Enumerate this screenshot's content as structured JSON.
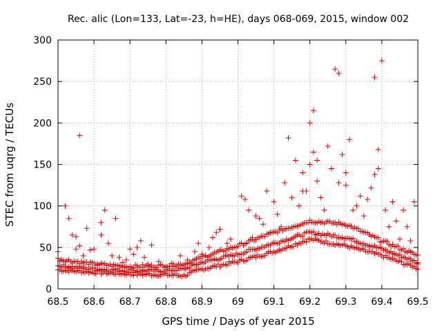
{
  "chart_data": {
    "type": "scatter",
    "title": "Rec. alic (Lon=133, Lat=-23, h=HE), days 068-069, 2015, window 002",
    "xlabel": "GPS time / Days of year 2015",
    "ylabel": "STEC from uqrg / TECUs",
    "xlim": [
      68.5,
      69.5
    ],
    "ylim": [
      0,
      300
    ],
    "xticks": [
      "68.5",
      "68.6",
      "68.7",
      "68.8",
      "68.9",
      "69",
      "69.1",
      "69.2",
      "69.3",
      "69.4",
      "69.5"
    ],
    "yticks": [
      "0",
      "50",
      "100",
      "150",
      "200",
      "250",
      "300"
    ],
    "grid": true,
    "marker": "plus",
    "color": "#dd0000",
    "points": [
      [
        68.5,
        45
      ],
      [
        68.51,
        35
      ],
      [
        68.52,
        100
      ],
      [
        68.53,
        27
      ],
      [
        68.53,
        85
      ],
      [
        68.54,
        65
      ],
      [
        68.55,
        63
      ],
      [
        68.55,
        48
      ],
      [
        68.56,
        185
      ],
      [
        68.56,
        52
      ],
      [
        68.57,
        40
      ],
      [
        68.58,
        73
      ],
      [
        68.59,
        47
      ],
      [
        68.6,
        48
      ],
      [
        68.61,
        30
      ],
      [
        68.62,
        65
      ],
      [
        68.62,
        80
      ],
      [
        68.63,
        95
      ],
      [
        68.64,
        55
      ],
      [
        68.65,
        40
      ],
      [
        68.66,
        85
      ],
      [
        68.67,
        38
      ],
      [
        68.68,
        32
      ],
      [
        68.69,
        35
      ],
      [
        68.7,
        48
      ],
      [
        68.71,
        42
      ],
      [
        68.72,
        50
      ],
      [
        68.73,
        58
      ],
      [
        68.74,
        38
      ],
      [
        68.75,
        30
      ],
      [
        68.76,
        53
      ],
      [
        68.78,
        33
      ],
      [
        68.8,
        27
      ],
      [
        68.82,
        30
      ],
      [
        68.84,
        40
      ],
      [
        68.86,
        35
      ],
      [
        68.88,
        45
      ],
      [
        68.89,
        55
      ],
      [
        68.9,
        42
      ],
      [
        68.92,
        50
      ],
      [
        68.93,
        62
      ],
      [
        68.94,
        68
      ],
      [
        68.95,
        72
      ],
      [
        68.97,
        55
      ],
      [
        68.98,
        60
      ],
      [
        69.01,
        112
      ],
      [
        69.02,
        108
      ],
      [
        69.03,
        95
      ],
      [
        69.04,
        62
      ],
      [
        69.05,
        88
      ],
      [
        69.06,
        85
      ],
      [
        69.07,
        78
      ],
      [
        69.08,
        118
      ],
      [
        69.09,
        68
      ],
      [
        69.1,
        105
      ],
      [
        69.11,
        90
      ],
      [
        69.12,
        75
      ],
      [
        69.13,
        128
      ],
      [
        69.14,
        182
      ],
      [
        69.15,
        110
      ],
      [
        69.16,
        155
      ],
      [
        69.17,
        100
      ],
      [
        69.18,
        118
      ],
      [
        69.18,
        140
      ],
      [
        69.19,
        118
      ],
      [
        69.2,
        200
      ],
      [
        69.2,
        150
      ],
      [
        69.21,
        165
      ],
      [
        69.21,
        215
      ],
      [
        69.22,
        155
      ],
      [
        69.22,
        130
      ],
      [
        69.23,
        110
      ],
      [
        69.24,
        95
      ],
      [
        69.25,
        172
      ],
      [
        69.26,
        145
      ],
      [
        69.27,
        265
      ],
      [
        69.28,
        260
      ],
      [
        69.28,
        128
      ],
      [
        69.29,
        162
      ],
      [
        69.3,
        125
      ],
      [
        69.3,
        140
      ],
      [
        69.31,
        180
      ],
      [
        69.32,
        95
      ],
      [
        69.33,
        100
      ],
      [
        69.34,
        112
      ],
      [
        69.35,
        88
      ],
      [
        69.36,
        108
      ],
      [
        69.37,
        122
      ],
      [
        69.38,
        255
      ],
      [
        69.38,
        138
      ],
      [
        69.39,
        168
      ],
      [
        69.39,
        145
      ],
      [
        69.4,
        275
      ],
      [
        69.41,
        95
      ],
      [
        69.42,
        75
      ],
      [
        69.43,
        105
      ],
      [
        69.44,
        82
      ],
      [
        69.45,
        60
      ],
      [
        69.46,
        95
      ],
      [
        69.47,
        75
      ],
      [
        69.48,
        58
      ],
      [
        69.49,
        105
      ],
      [
        69.5,
        30
      ]
    ],
    "bands": [
      {
        "name": "lower",
        "values": [
          [
            68.5,
            23
          ],
          [
            68.6,
            20
          ],
          [
            68.7,
            18
          ],
          [
            68.8,
            17
          ],
          [
            68.85,
            16
          ],
          [
            68.9,
            24
          ],
          [
            69.0,
            33
          ],
          [
            69.1,
            45
          ],
          [
            69.2,
            60
          ],
          [
            69.3,
            52
          ],
          [
            69.4,
            40
          ],
          [
            69.5,
            25
          ]
        ]
      },
      {
        "name": "middle",
        "values": [
          [
            68.5,
            28
          ],
          [
            68.6,
            24
          ],
          [
            68.7,
            22
          ],
          [
            68.8,
            22
          ],
          [
            68.85,
            24
          ],
          [
            68.9,
            32
          ],
          [
            69.0,
            42
          ],
          [
            69.1,
            55
          ],
          [
            69.2,
            68
          ],
          [
            69.3,
            62
          ],
          [
            69.4,
            48
          ],
          [
            69.5,
            32
          ]
        ]
      },
      {
        "name": "upper",
        "values": [
          [
            68.5,
            36
          ],
          [
            68.6,
            30
          ],
          [
            68.7,
            27
          ],
          [
            68.8,
            28
          ],
          [
            68.85,
            30
          ],
          [
            68.9,
            38
          ],
          [
            69.0,
            52
          ],
          [
            69.1,
            68
          ],
          [
            69.2,
            82
          ],
          [
            69.3,
            78
          ],
          [
            69.4,
            58
          ],
          [
            69.5,
            40
          ]
        ]
      }
    ]
  }
}
